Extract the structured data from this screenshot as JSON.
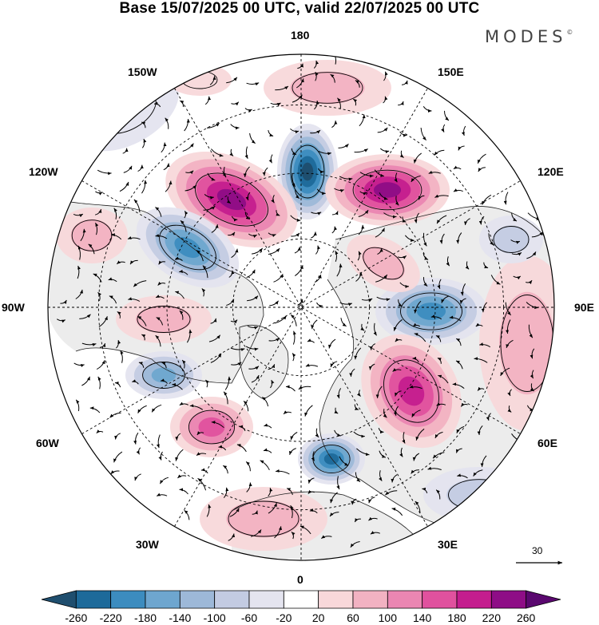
{
  "title": "Base 15/07/2025 00 UTC, valid 22/07/2025 00 UTC",
  "brand": "MODES",
  "brand_mark": "©",
  "longitude_labels": {
    "lon_180": "180",
    "lon_150w": "150W",
    "lon_150e": "150E",
    "lon_120w": "120W",
    "lon_120e": "120E",
    "lon_90w": "90W",
    "lon_90e": "90E",
    "lon_60w": "60W",
    "lon_60e": "60E",
    "lon_30w": "30W",
    "lon_30e": "30E",
    "lon_0": "0"
  },
  "colorbar": {
    "ticks": [
      "-260",
      "-220",
      "-180",
      "-140",
      "-100",
      "-60",
      "-20",
      "20",
      "60",
      "100",
      "140",
      "180",
      "220",
      "260"
    ],
    "colors": [
      "#1f4e6e",
      "#1d6a9a",
      "#3c8cbf",
      "#6ea6cf",
      "#9db8d8",
      "#c3cbe2",
      "#e4e4ef",
      "#ffffff",
      "#f8d8da",
      "#f2b2c2",
      "#ea86b2",
      "#e0519e",
      "#c41d8e",
      "#8e0d86",
      "#5a086f"
    ]
  },
  "vector_reference": "30",
  "colors": {
    "land": "#ececec",
    "border": "#000000",
    "grid": "#000000"
  }
}
